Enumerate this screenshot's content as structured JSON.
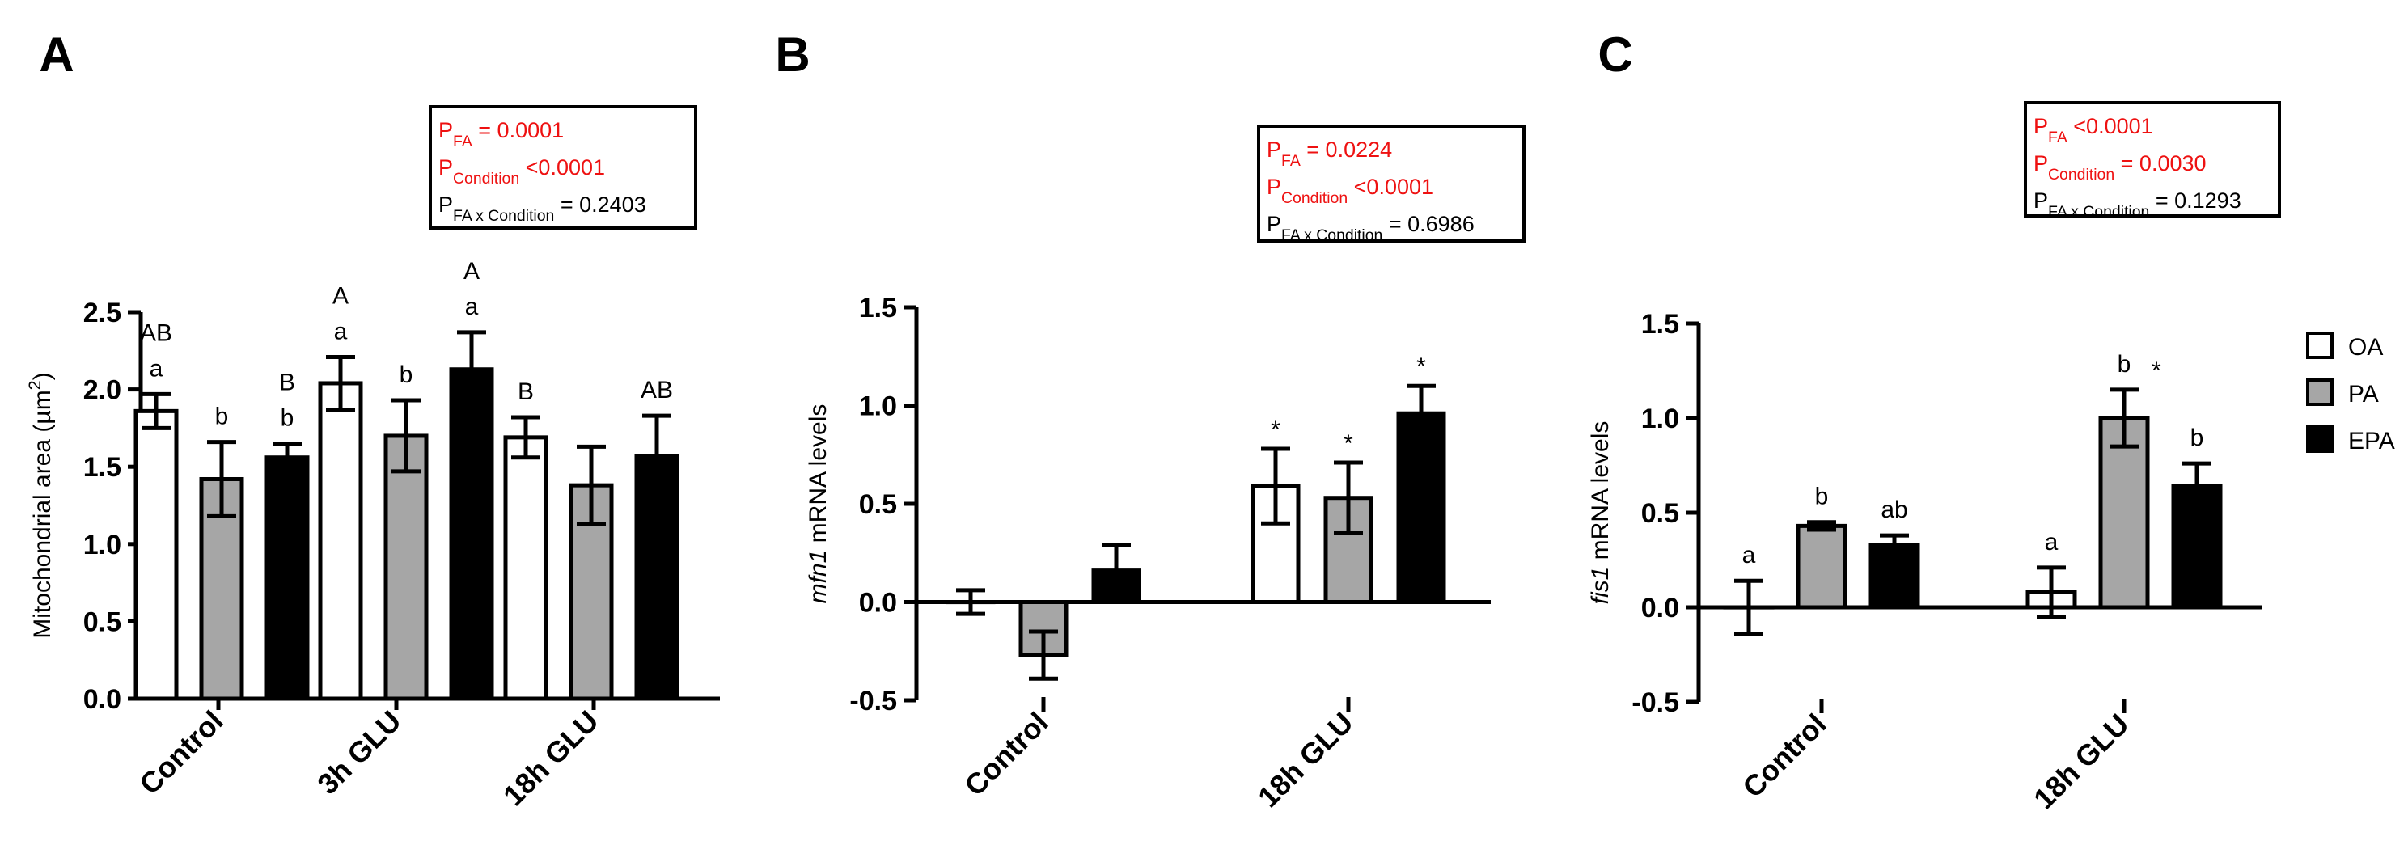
{
  "colors": {
    "OA": "#ffffff",
    "PA": "#a6a6a6",
    "EPA": "#000000",
    "stat_sig": "#ee1111",
    "stat_ns": "#000000"
  },
  "legend": {
    "items": [
      {
        "label": "OA",
        "fill": "#ffffff"
      },
      {
        "label": "PA",
        "fill": "#a6a6a6"
      },
      {
        "label": "EPA",
        "fill": "#000000"
      }
    ],
    "placement": "right of panel C"
  },
  "chart_data": [
    {
      "panel": "A",
      "type": "bar",
      "ylabel_parts": [
        {
          "t": "Mitochondrial area ("
        },
        {
          "t": "µm"
        },
        {
          "t": "2",
          "sup": true
        },
        {
          "t": ")"
        }
      ],
      "ylim": [
        0,
        2.5
      ],
      "yticks": [
        "0.0",
        "0.5",
        "1.0",
        "1.5",
        "2.0",
        "2.5"
      ],
      "categories": [
        "Control",
        "3h GLU",
        "18h GLU"
      ],
      "series": [
        {
          "name": "OA",
          "values": [
            1.86,
            2.04,
            1.69
          ],
          "errors": [
            0.11,
            0.17,
            0.13
          ],
          "letters": [
            [
              "AB",
              "a"
            ],
            [
              "A",
              "a"
            ],
            [
              "B"
            ]
          ]
        },
        {
          "name": "PA",
          "values": [
            1.42,
            1.7,
            1.38
          ],
          "errors": [
            0.24,
            0.23,
            0.25
          ],
          "letters": [
            [
              "b"
            ],
            [
              "b"
            ],
            []
          ]
        },
        {
          "name": "EPA",
          "values": [
            1.56,
            2.13,
            1.57
          ],
          "errors": [
            0.09,
            0.24,
            0.26
          ],
          "letters": [
            [
              "B",
              "b"
            ],
            [
              "A",
              "a"
            ],
            [
              "AB"
            ]
          ]
        }
      ],
      "stats": [
        {
          "parts": [
            {
              "t": "P"
            },
            {
              "t": "FA",
              "sub": true
            },
            {
              "t": " = 0.0001"
            }
          ],
          "significant": true
        },
        {
          "parts": [
            {
              "t": "P"
            },
            {
              "t": "Condition",
              "sub": true
            },
            {
              "t": " <0.0001"
            }
          ],
          "significant": true
        },
        {
          "parts": [
            {
              "t": "P"
            },
            {
              "t": "FA x Condition",
              "sub": true
            },
            {
              "t": " = 0.2403"
            }
          ],
          "significant": false
        }
      ]
    },
    {
      "panel": "B",
      "type": "bar",
      "ylabel_parts": [
        {
          "t": "mfn1",
          "italic": true
        },
        {
          "t": " mRNA levels"
        }
      ],
      "ylim": [
        -0.5,
        1.5
      ],
      "yticks": [
        "-0.5",
        "0.0",
        "0.5",
        "1.0",
        "1.5"
      ],
      "categories": [
        "Control",
        "18h GLU"
      ],
      "series": [
        {
          "name": "OA",
          "values": [
            0.0,
            0.59
          ],
          "errors": [
            0.06,
            0.19
          ],
          "letters": [
            [],
            [
              "*"
            ]
          ]
        },
        {
          "name": "PA",
          "values": [
            -0.27,
            0.53
          ],
          "errors": [
            0.12,
            0.18
          ],
          "letters": [
            [],
            [
              "*"
            ]
          ]
        },
        {
          "name": "EPA",
          "values": [
            0.16,
            0.96
          ],
          "errors": [
            0.13,
            0.14
          ],
          "letters": [
            [],
            [
              "*"
            ]
          ]
        }
      ],
      "stats": [
        {
          "parts": [
            {
              "t": "P"
            },
            {
              "t": "FA",
              "sub": true
            },
            {
              "t": " = 0.0224"
            }
          ],
          "significant": true
        },
        {
          "parts": [
            {
              "t": "P"
            },
            {
              "t": "Condition",
              "sub": true
            },
            {
              "t": " <0.0001"
            }
          ],
          "significant": true
        },
        {
          "parts": [
            {
              "t": "P"
            },
            {
              "t": "FA x Condition",
              "sub": true
            },
            {
              "t": " = 0.6986"
            }
          ],
          "significant": false
        }
      ]
    },
    {
      "panel": "C",
      "type": "bar",
      "ylabel_parts": [
        {
          "t": "fis1",
          "italic": true
        },
        {
          "t": " mRNA levels"
        }
      ],
      "ylim": [
        -0.5,
        1.5
      ],
      "yticks": [
        "-0.5",
        "0.0",
        "0.5",
        "1.0",
        "1.5"
      ],
      "categories": [
        "Control",
        "18h GLU"
      ],
      "series": [
        {
          "name": "OA",
          "values": [
            0.0,
            0.08
          ],
          "errors": [
            0.14,
            0.13
          ],
          "letters": [
            [
              "a"
            ],
            [
              "a"
            ]
          ]
        },
        {
          "name": "PA",
          "values": [
            0.43,
            1.0
          ],
          "errors": [
            0.02,
            0.15
          ],
          "letters": [
            [
              "b"
            ],
            [
              "b",
              "*"
            ]
          ]
        },
        {
          "name": "EPA",
          "values": [
            0.33,
            0.64
          ],
          "errors": [
            0.05,
            0.12
          ],
          "letters": [
            [
              "ab"
            ],
            [
              "b"
            ]
          ]
        }
      ],
      "stats": [
        {
          "parts": [
            {
              "t": "P"
            },
            {
              "t": "FA",
              "sub": true
            },
            {
              "t": " <0.0001"
            }
          ],
          "significant": true
        },
        {
          "parts": [
            {
              "t": "P"
            },
            {
              "t": "Condition",
              "sub": true
            },
            {
              "t": " = 0.0030"
            }
          ],
          "significant": true
        },
        {
          "parts": [
            {
              "t": "P"
            },
            {
              "t": "FA x Condition",
              "sub": true
            },
            {
              "t": " = 0.1293"
            }
          ],
          "significant": false
        }
      ]
    }
  ]
}
